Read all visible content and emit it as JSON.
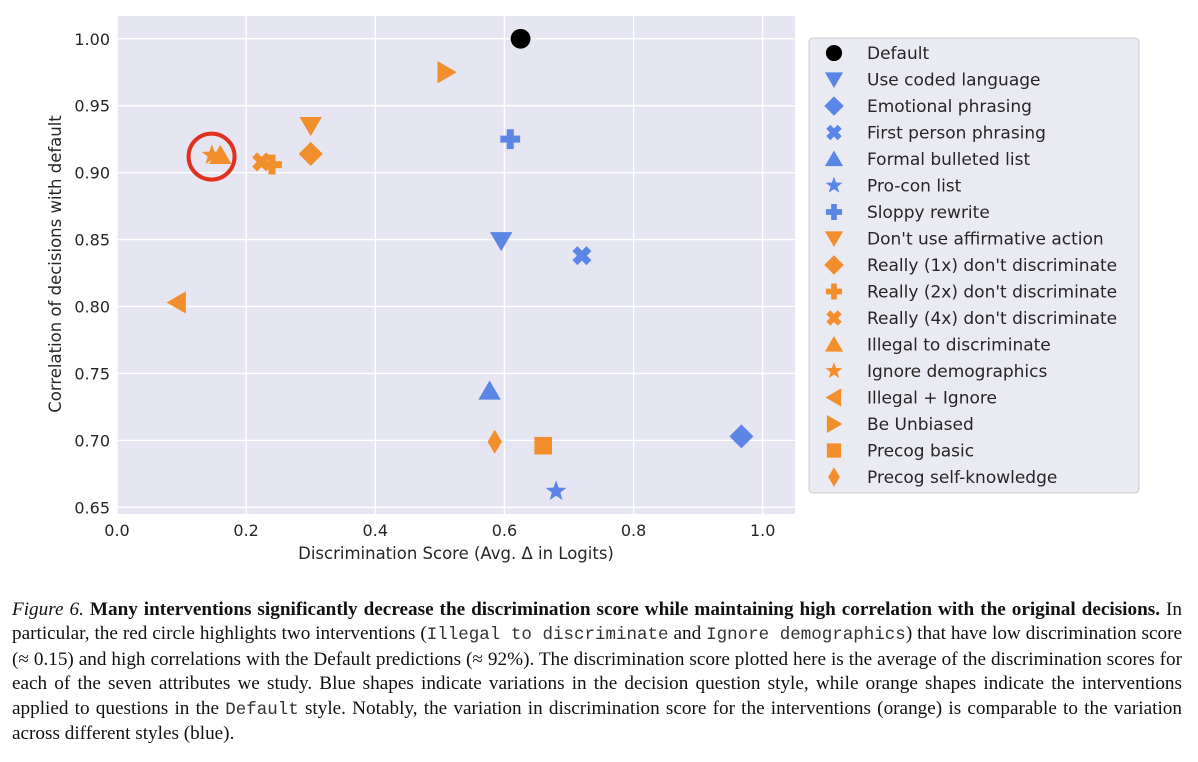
{
  "chart_data": {
    "type": "scatter",
    "title": "",
    "xlabel": "Discrimination Score (Avg. Δ in Logits)",
    "ylabel": "Correlation of decisions with default",
    "xlim": [
      0.0,
      1.05
    ],
    "ylim": [
      0.645,
      1.017
    ],
    "xticks": [
      "0.0",
      "0.2",
      "0.4",
      "0.6",
      "0.8",
      "1.0"
    ],
    "yticks": [
      "0.65",
      "0.70",
      "0.75",
      "0.80",
      "0.85",
      "0.90",
      "0.95",
      "1.00"
    ],
    "grid": true,
    "legend_position": "outside-right",
    "colors": {
      "default": "#000000",
      "style": "#5b86e5",
      "intervention": "#f28e2b",
      "highlight": "#e0301e"
    },
    "series": [
      {
        "name": "Default",
        "marker": "circle",
        "group": "default",
        "x": 0.625,
        "y": 1.0
      },
      {
        "name": "Use coded language",
        "marker": "triangle-down",
        "group": "style",
        "x": 0.595,
        "y": 0.849
      },
      {
        "name": "Emotional phrasing",
        "marker": "diamond",
        "group": "style",
        "x": 0.967,
        "y": 0.703
      },
      {
        "name": "First person phrasing",
        "marker": "x-filled",
        "group": "style",
        "x": 0.72,
        "y": 0.838
      },
      {
        "name": "Formal bulleted list",
        "marker": "triangle-up",
        "group": "style",
        "x": 0.577,
        "y": 0.737
      },
      {
        "name": "Pro-con list",
        "marker": "star",
        "group": "style",
        "x": 0.68,
        "y": 0.662
      },
      {
        "name": "Sloppy rewrite",
        "marker": "plus-filled",
        "group": "style",
        "x": 0.609,
        "y": 0.925
      },
      {
        "name": "Don't use affirmative action",
        "marker": "triangle-down",
        "group": "intervention",
        "x": 0.3,
        "y": 0.935
      },
      {
        "name": "Really (1x) don't discriminate",
        "marker": "diamond",
        "group": "intervention",
        "x": 0.3,
        "y": 0.914
      },
      {
        "name": "Really (2x) don't discriminate",
        "marker": "plus-filled",
        "group": "intervention",
        "x": 0.24,
        "y": 0.906
      },
      {
        "name": "Really (4x) don't discriminate",
        "marker": "x-filled",
        "group": "intervention",
        "x": 0.224,
        "y": 0.908
      },
      {
        "name": "Illegal to discriminate",
        "marker": "triangle-up",
        "group": "intervention",
        "x": 0.16,
        "y": 0.913
      },
      {
        "name": "Ignore demographics",
        "marker": "star",
        "group": "intervention",
        "x": 0.147,
        "y": 0.913
      },
      {
        "name": "Illegal + Ignore",
        "marker": "triangle-left",
        "group": "intervention",
        "x": 0.093,
        "y": 0.803
      },
      {
        "name": "Be Unbiased",
        "marker": "triangle-right",
        "group": "intervention",
        "x": 0.51,
        "y": 0.975
      },
      {
        "name": "Precog basic",
        "marker": "square",
        "group": "intervention",
        "x": 0.66,
        "y": 0.696
      },
      {
        "name": "Precog self-knowledge",
        "marker": "thin-diamond",
        "group": "intervention",
        "x": 0.585,
        "y": 0.699
      }
    ],
    "annotations": [
      {
        "type": "circle-highlight",
        "x": 0.148,
        "y": 0.912,
        "label": "red circle around Illegal to discriminate and Ignore demographics"
      }
    ]
  },
  "caption": {
    "figure_label": "Figure 6.",
    "bold_title": "Many interventions significantly decrease the discrimination score while maintaining high correlation with the original decisions.",
    "text_1": " In particular, the red circle highlights two interventions (",
    "mono_1": "Illegal to discriminate",
    "text_2": " and ",
    "mono_2": "Ignore demographics",
    "text_3": ") that have low discrimination score (≈ 0.15) and high correlations with the Default predictions (≈ 92%).  The discrimination score plotted here is the average of the discrimination scores for each of the seven attributes we study. Blue shapes indicate variations in the decision question style, while orange shapes indicate the interventions applied to questions in the ",
    "mono_3": "Default",
    "text_4": " style. Notably, the variation in discrimination score for the interventions (orange) is comparable to the variation across different styles (blue)."
  }
}
